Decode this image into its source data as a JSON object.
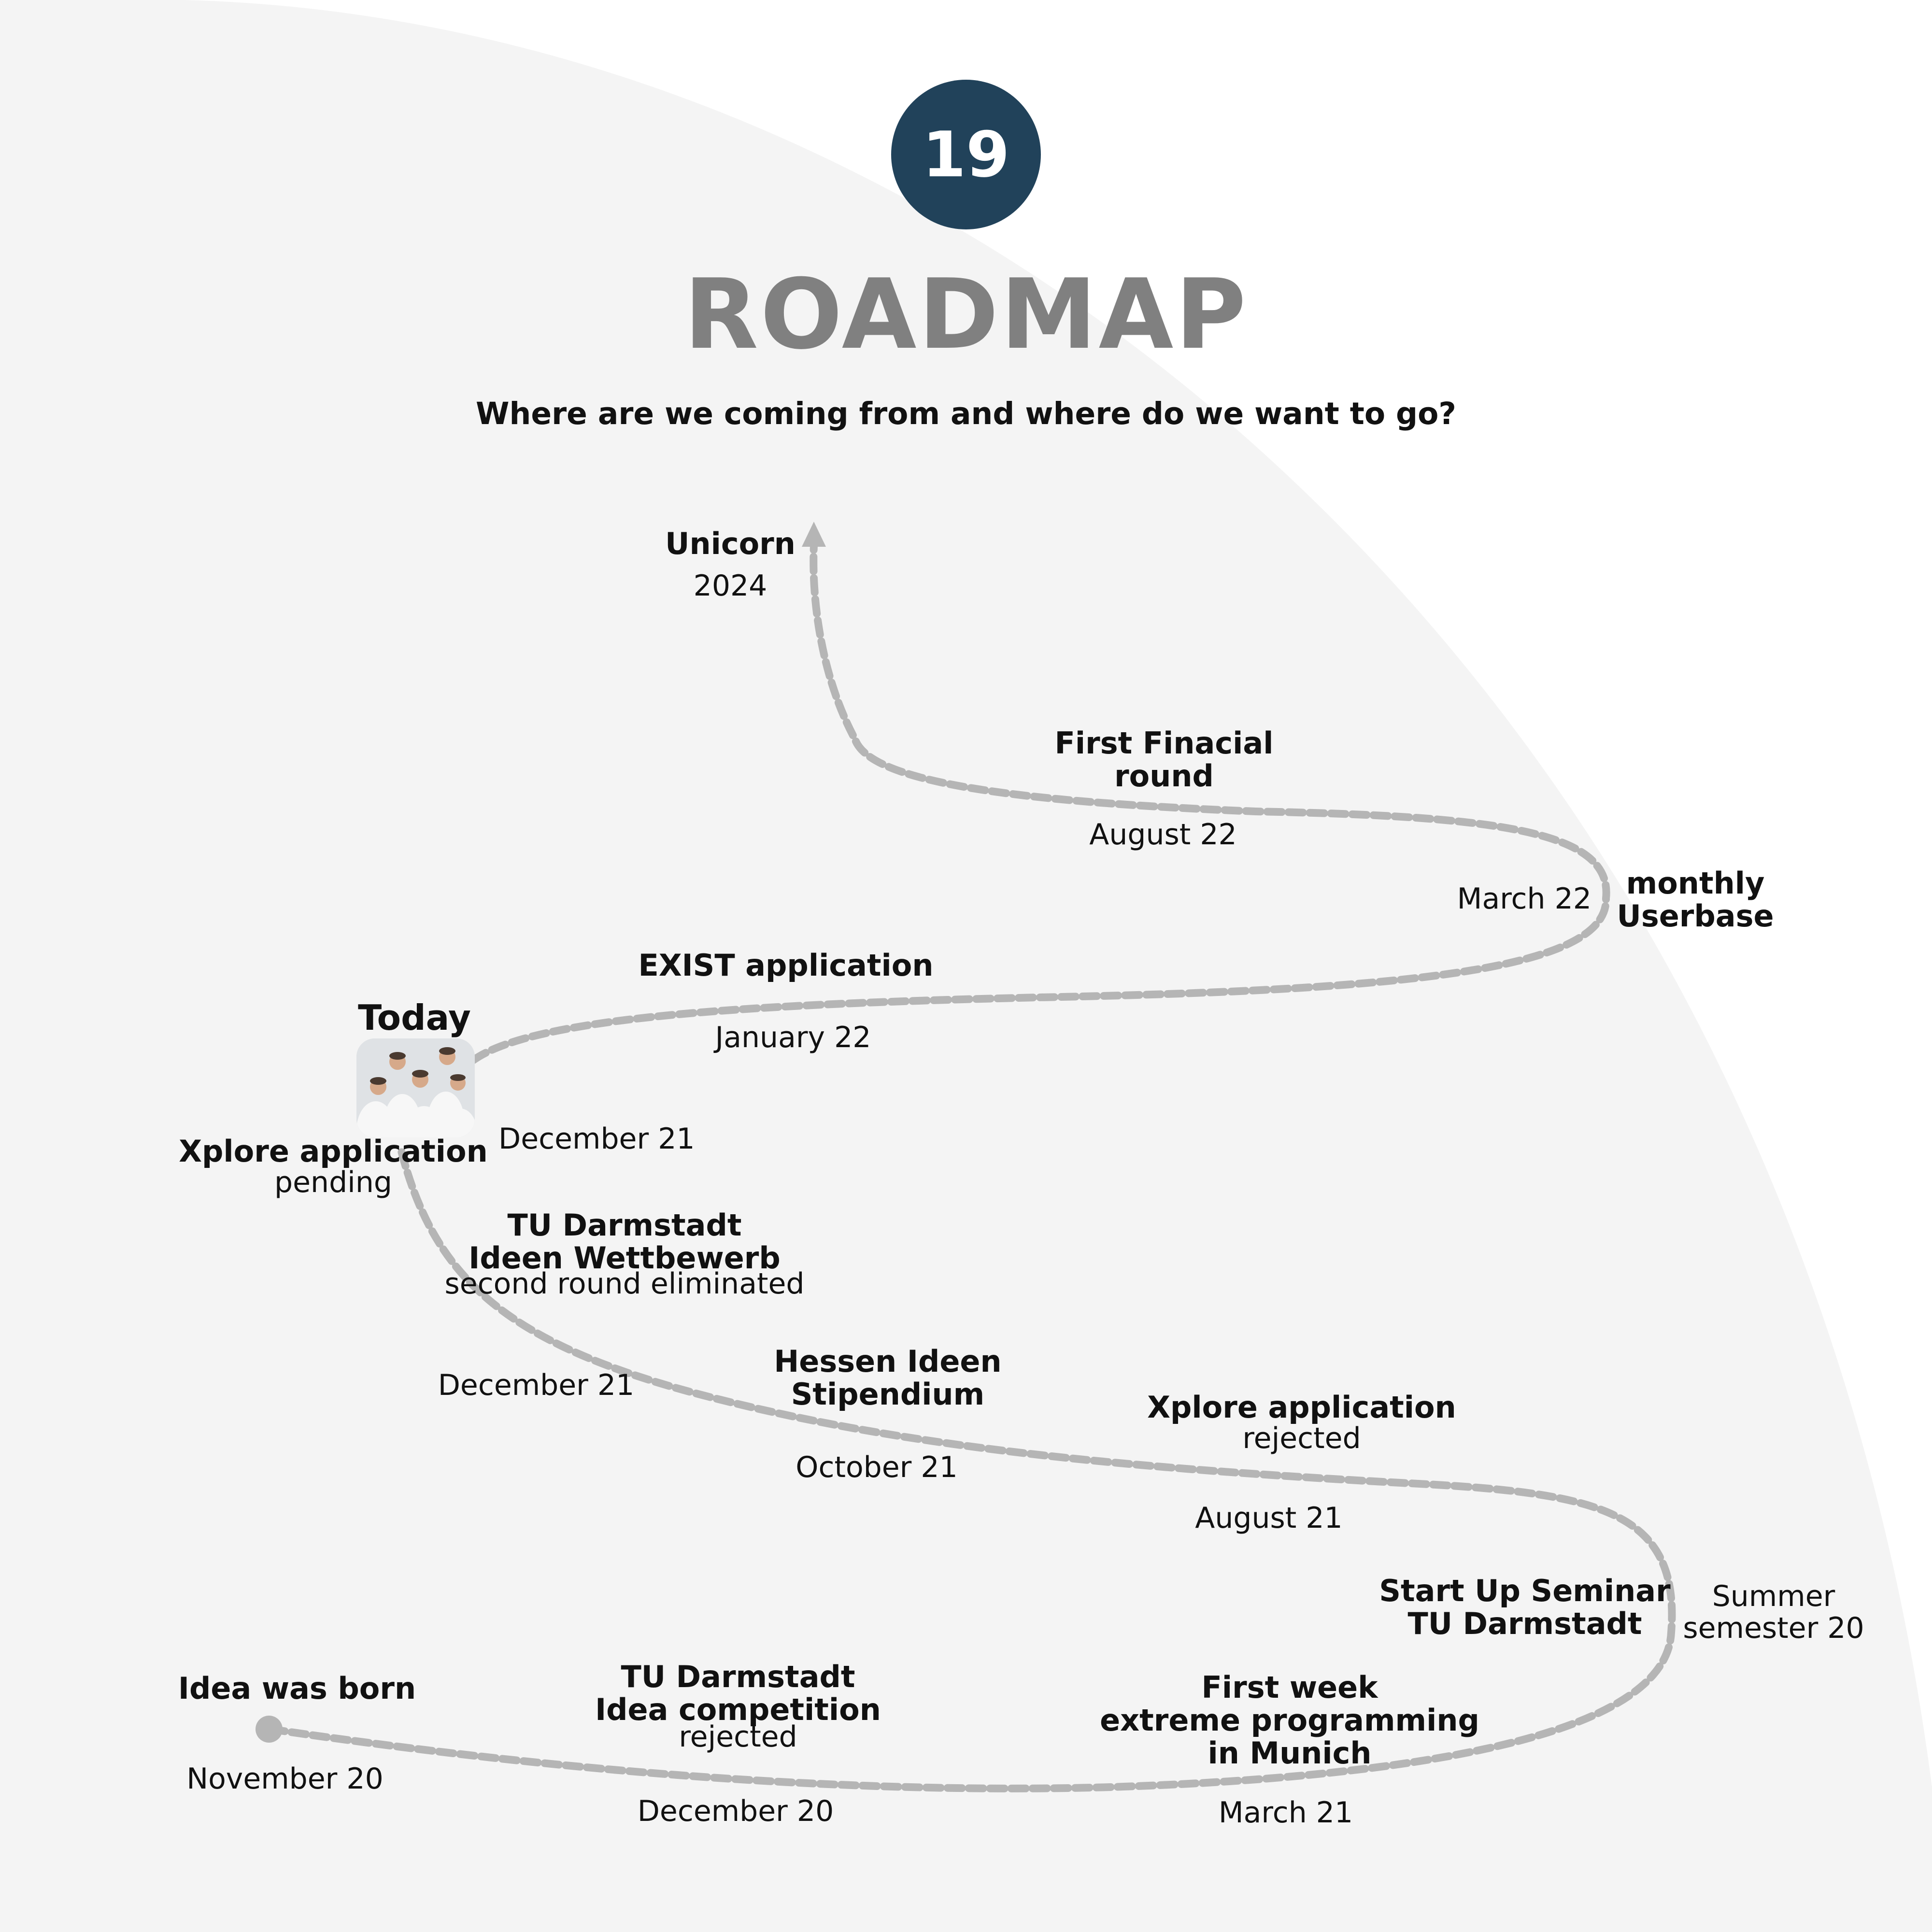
{
  "colors": {
    "background": "#ffffff",
    "arc": "#f4f4f4",
    "badge": "#21425a",
    "title": "#808080",
    "path": "#b5b5b5",
    "text": "#111111"
  },
  "badge_number": "19",
  "title": "ROADMAP",
  "subtitle": "Where are we coming from and where do we want to go?",
  "today_label": "Today",
  "milestones": [
    {
      "key": "idea",
      "title": "Idea was born",
      "date": "November 20"
    },
    {
      "key": "tu_idea",
      "title": "TU Darmstadt\nIdea competition",
      "note": "rejected",
      "date": "December 20"
    },
    {
      "key": "first_week",
      "title": "First week\nextreme programming\nin Munich",
      "date": "March 21"
    },
    {
      "key": "seminar",
      "title": "Start Up Seminar\nTU Darmstadt",
      "date": "Summer\nsemester 20"
    },
    {
      "key": "xplore_rejected",
      "title": "Xplore application",
      "note": "rejected",
      "date": "August 21"
    },
    {
      "key": "hessen",
      "title": "Hessen Ideen\nStipendium",
      "date": "October 21"
    },
    {
      "key": "tu_wettbewerb",
      "title": "TU Darmstadt\nIdeen Wettbewerb",
      "note": "second round eliminated",
      "date": "December 21"
    },
    {
      "key": "xplore_pending",
      "title": "Xplore application",
      "note": "pending",
      "date": "December 21"
    },
    {
      "key": "exist",
      "title": "EXIST application",
      "date": "January 22"
    },
    {
      "key": "userbase",
      "title": "monthly\nUserbase",
      "date": "March 22"
    },
    {
      "key": "financial",
      "title": "First Finacial\nround",
      "date": "August 22"
    },
    {
      "key": "unicorn",
      "title": "Unicorn",
      "date": "2024"
    }
  ]
}
